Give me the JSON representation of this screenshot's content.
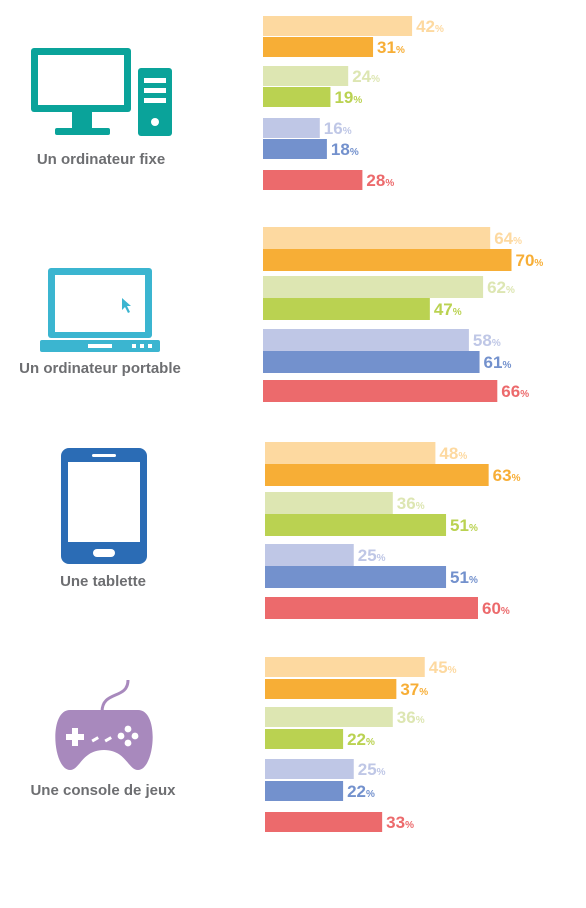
{
  "chart_data": {
    "type": "bar",
    "orientation": "horizontal",
    "unit": "%",
    "colors": [
      "#fdd9a0",
      "#f7ae36",
      "#dde6b2",
      "#bad251",
      "#bfc7e6",
      "#7391cd",
      "#ec6a6c"
    ],
    "label_colors": [
      "#fdd9a0",
      "#f7ae36",
      "#dde6b2",
      "#bad251",
      "#bfc7e6",
      "#7391cd",
      "#ec6a6c"
    ],
    "groups": [
      {
        "label": "Un ordinateur fixe",
        "icon": "desktop-computer-icon",
        "icon_color": "#0aa39a",
        "values": [
          42,
          31,
          24,
          19,
          16,
          18,
          28
        ]
      },
      {
        "label": "Un ordinateur portable",
        "icon": "laptop-icon",
        "icon_color": "#3bb5d0",
        "values": [
          64,
          70,
          62,
          47,
          58,
          61,
          66
        ]
      },
      {
        "label": "Une tablette",
        "icon": "tablet-icon",
        "icon_color": "#2b6cb5",
        "values": [
          48,
          63,
          36,
          51,
          25,
          51,
          60
        ]
      },
      {
        "label": "Une console de jeux",
        "icon": "game-controller-icon",
        "icon_color": "#a889bd",
        "values": [
          45,
          37,
          36,
          22,
          25,
          22,
          33
        ]
      }
    ]
  }
}
